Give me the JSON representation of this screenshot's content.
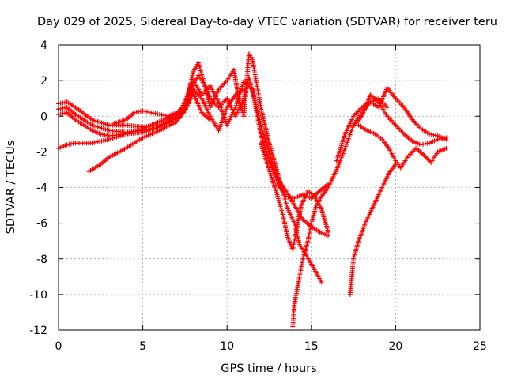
{
  "chart_data": {
    "type": "scatter",
    "title": "Day 029 of 2025, Sidereal Day-to-day VTEC variation (SDTVAR) for receiver teru",
    "xlabel": "GPS time / hours",
    "ylabel": "SDTVAR / TECUs",
    "xlim": [
      0,
      25
    ],
    "ylim": [
      -12,
      4
    ],
    "x_ticks": [
      "0",
      "5",
      "10",
      "15",
      "20",
      "25"
    ],
    "y_ticks": [
      "-12",
      "-10",
      "-8",
      "-6",
      "-4",
      "-2",
      "0",
      "2",
      "4"
    ],
    "grid": true,
    "marker": "plus",
    "color": "#ff0000",
    "series": [
      {
        "points": [
          [
            0.0,
            0.7
          ],
          [
            0.5,
            0.8
          ],
          [
            1.0,
            0.5
          ],
          [
            2.0,
            -0.2
          ],
          [
            3.0,
            -0.5
          ],
          [
            4.0,
            -0.5
          ],
          [
            5.0,
            -0.6
          ],
          [
            6.0,
            -0.5
          ],
          [
            7.0,
            -0.1
          ],
          [
            7.5,
            0.3
          ],
          [
            8.0,
            1.8
          ],
          [
            8.3,
            2.3
          ],
          [
            8.7,
            1.7
          ],
          [
            9.0,
            1.0
          ],
          [
            9.5,
            0.5
          ],
          [
            10.0,
            1.0
          ],
          [
            10.5,
            0.0
          ],
          [
            11.0,
            1.0
          ],
          [
            11.3,
            2.2
          ],
          [
            11.6,
            1.0
          ],
          [
            12.0,
            -1.0
          ],
          [
            12.5,
            -2.5
          ],
          [
            13.0,
            -3.5
          ],
          [
            13.5,
            -4.2
          ],
          [
            14.0,
            -5.0
          ],
          [
            14.5,
            -5.8
          ],
          [
            15.0,
            -6.2
          ],
          [
            15.5,
            -6.5
          ],
          [
            16.0,
            -6.7
          ]
        ]
      },
      {
        "points": [
          [
            0.0,
            0.4
          ],
          [
            0.5,
            0.5
          ],
          [
            1.0,
            0.1
          ],
          [
            2.0,
            -0.5
          ],
          [
            3.0,
            -0.8
          ],
          [
            4.0,
            -0.9
          ],
          [
            5.0,
            -0.8
          ],
          [
            6.0,
            -0.6
          ],
          [
            7.0,
            -0.1
          ],
          [
            7.5,
            0.5
          ],
          [
            8.0,
            2.5
          ],
          [
            8.3,
            3.0
          ],
          [
            8.6,
            2.0
          ],
          [
            9.0,
            0.5
          ],
          [
            9.5,
            1.5
          ],
          [
            10.0,
            2.0
          ],
          [
            10.4,
            2.6
          ],
          [
            10.7,
            1.0
          ],
          [
            11.0,
            0.0
          ],
          [
            11.3,
            3.5
          ],
          [
            11.5,
            3.2
          ],
          [
            12.0,
            0.5
          ],
          [
            12.5,
            -1.5
          ],
          [
            13.0,
            -3.2
          ],
          [
            13.3,
            -4.2
          ],
          [
            13.6,
            -5.2
          ],
          [
            14.0,
            -6.0
          ],
          [
            14.3,
            -7.2
          ],
          [
            14.7,
            -7.8
          ],
          [
            15.0,
            -8.3
          ],
          [
            15.3,
            -8.8
          ],
          [
            15.6,
            -9.3
          ]
        ]
      },
      {
        "points": [
          [
            0.0,
            0.1
          ],
          [
            0.5,
            0.2
          ],
          [
            1.0,
            -0.2
          ],
          [
            2.0,
            -0.8
          ],
          [
            2.5,
            -1.0
          ],
          [
            3.0,
            -1.1
          ],
          [
            4.0,
            -1.0
          ],
          [
            5.0,
            -0.9
          ],
          [
            6.0,
            -0.6
          ],
          [
            7.0,
            0.0
          ],
          [
            7.5,
            0.8
          ],
          [
            8.0,
            2.0
          ],
          [
            8.5,
            1.2
          ],
          [
            9.0,
            1.7
          ],
          [
            9.5,
            0.8
          ],
          [
            10.0,
            -0.5
          ],
          [
            10.5,
            0.5
          ],
          [
            11.0,
            2.0
          ],
          [
            11.5,
            1.5
          ],
          [
            12.0,
            -0.5
          ],
          [
            12.5,
            -2.0
          ],
          [
            13.0,
            -3.8
          ],
          [
            13.5,
            -4.5
          ],
          [
            14.0,
            -4.6
          ],
          [
            14.5,
            -4.4
          ],
          [
            15.0,
            -4.6
          ],
          [
            15.5,
            -4.2
          ],
          [
            16.0,
            -3.8
          ]
        ]
      },
      {
        "points": [
          [
            0.0,
            -1.8
          ],
          [
            0.5,
            -1.6
          ],
          [
            1.0,
            -1.5
          ],
          [
            2.0,
            -1.5
          ],
          [
            3.0,
            -1.3
          ],
          [
            4.0,
            -1.0
          ],
          [
            5.0,
            -0.7
          ],
          [
            6.0,
            -0.3
          ],
          [
            7.0,
            0.1
          ],
          [
            7.5,
            0.5
          ],
          [
            8.0,
            1.5
          ],
          [
            8.5,
            1.0
          ],
          [
            9.0,
            0.0
          ],
          [
            9.5,
            -0.8
          ],
          [
            10.0,
            0.5
          ],
          [
            10.5,
            1.2
          ],
          [
            11.0,
            1.5
          ]
        ]
      },
      {
        "points": [
          [
            1.8,
            -3.1
          ],
          [
            2.5,
            -2.7
          ],
          [
            3.0,
            -2.3
          ],
          [
            4.0,
            -1.8
          ],
          [
            5.0,
            -1.2
          ],
          [
            6.0,
            -0.8
          ],
          [
            7.0,
            -0.3
          ],
          [
            7.5,
            0.3
          ],
          [
            8.0,
            1.3
          ],
          [
            8.5,
            0.2
          ],
          [
            9.0,
            -0.2
          ]
        ]
      },
      {
        "points": [
          [
            3.3,
            -0.4
          ],
          [
            4.0,
            -0.2
          ],
          [
            4.5,
            0.2
          ],
          [
            5.0,
            0.3
          ],
          [
            5.5,
            0.2
          ],
          [
            6.0,
            0.1
          ],
          [
            6.5,
            0.0
          ],
          [
            7.0,
            0.2
          ],
          [
            7.5,
            0.5
          ],
          [
            8.0,
            1.8
          ]
        ]
      },
      {
        "points": [
          [
            12.0,
            -1.5
          ],
          [
            12.5,
            -3.0
          ],
          [
            13.0,
            -4.5
          ],
          [
            13.3,
            -5.5
          ],
          [
            13.6,
            -6.8
          ],
          [
            13.9,
            -7.5
          ],
          [
            14.1,
            -6.5
          ],
          [
            14.4,
            -5.0
          ],
          [
            14.8,
            -4.2
          ],
          [
            15.2,
            -4.5
          ],
          [
            15.6,
            -5.2
          ],
          [
            16.0,
            -6.5
          ]
        ]
      },
      {
        "points": [
          [
            13.9,
            -11.8
          ],
          [
            14.0,
            -10.5
          ],
          [
            14.2,
            -9.5
          ],
          [
            14.5,
            -8.0
          ],
          [
            14.8,
            -7.0
          ],
          [
            15.0,
            -6.0
          ],
          [
            15.3,
            -5.0
          ],
          [
            15.6,
            -4.5
          ],
          [
            16.0,
            -4.0
          ],
          [
            16.5,
            -3.0
          ],
          [
            17.0,
            -1.8
          ],
          [
            17.5,
            -0.5
          ],
          [
            18.0,
            0.2
          ],
          [
            18.5,
            0.8
          ],
          [
            19.0,
            1.0
          ],
          [
            19.5,
            0.5
          ]
        ]
      },
      {
        "points": [
          [
            16.5,
            -2.5
          ],
          [
            17.0,
            -1.0
          ],
          [
            17.5,
            0.0
          ],
          [
            18.0,
            0.5
          ],
          [
            18.5,
            0.8
          ],
          [
            19.0,
            0.5
          ],
          [
            19.5,
            1.6
          ],
          [
            20.0,
            1.0
          ],
          [
            20.5,
            0.5
          ],
          [
            21.0,
            -0.2
          ],
          [
            21.5,
            -0.7
          ],
          [
            22.0,
            -1.0
          ],
          [
            22.5,
            -1.1
          ],
          [
            23.0,
            -1.3
          ]
        ]
      },
      {
        "points": [
          [
            17.5,
            -0.5
          ],
          [
            18.0,
            0.0
          ],
          [
            18.5,
            1.2
          ],
          [
            19.0,
            0.8
          ],
          [
            19.5,
            0.0
          ],
          [
            20.0,
            -0.5
          ],
          [
            20.5,
            -1.0
          ],
          [
            21.0,
            -1.4
          ],
          [
            21.5,
            -1.6
          ],
          [
            22.0,
            -1.5
          ],
          [
            22.5,
            -1.3
          ],
          [
            23.0,
            -1.2
          ]
        ]
      },
      {
        "points": [
          [
            17.8,
            -0.5
          ],
          [
            18.3,
            -0.8
          ],
          [
            18.8,
            -1.0
          ],
          [
            19.2,
            -1.3
          ],
          [
            19.6,
            -1.8
          ],
          [
            20.0,
            -2.5
          ],
          [
            20.3,
            -2.9
          ],
          [
            20.7,
            -2.3
          ],
          [
            21.2,
            -1.8
          ],
          [
            21.7,
            -2.2
          ],
          [
            22.1,
            -2.6
          ],
          [
            22.5,
            -2.0
          ],
          [
            23.0,
            -1.8
          ]
        ]
      },
      {
        "points": [
          [
            17.3,
            -10.0
          ],
          [
            17.4,
            -9.0
          ],
          [
            17.5,
            -8.0
          ],
          [
            17.8,
            -7.0
          ],
          [
            18.2,
            -6.0
          ],
          [
            18.7,
            -5.0
          ],
          [
            19.2,
            -4.0
          ],
          [
            19.6,
            -3.2
          ],
          [
            20.0,
            -2.7
          ]
        ]
      }
    ]
  }
}
